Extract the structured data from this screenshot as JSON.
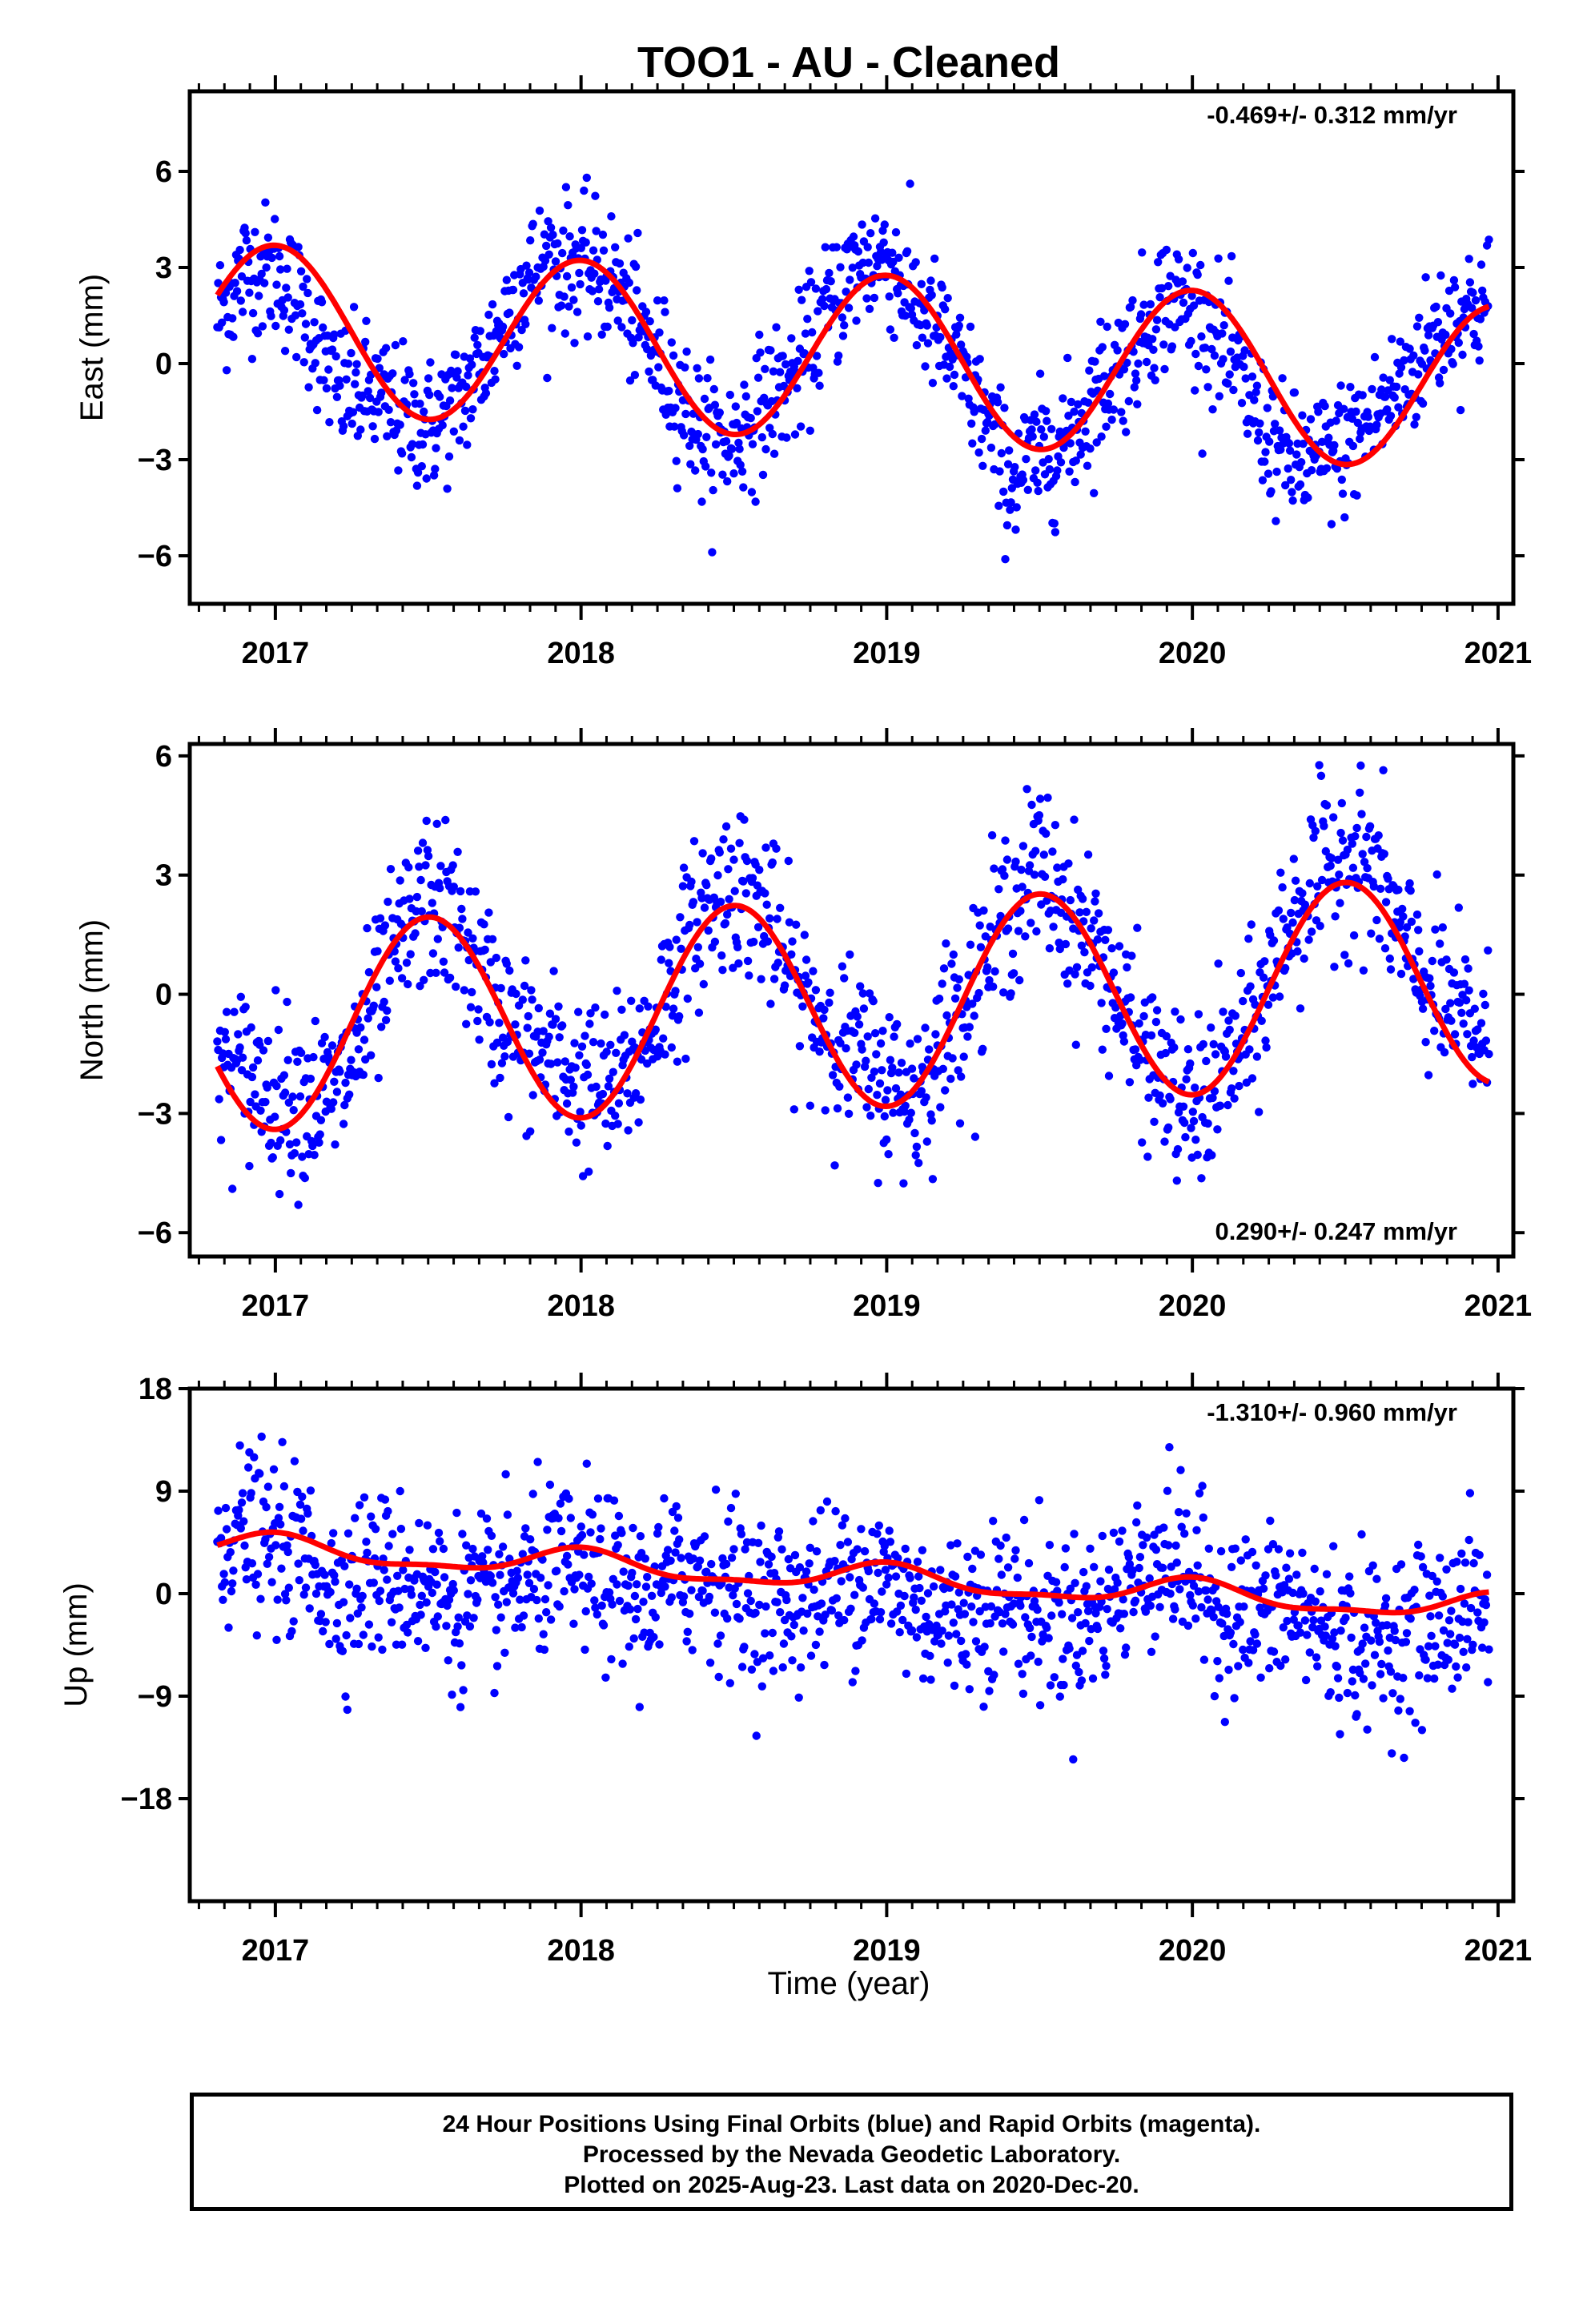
{
  "title": "TOO1  - AU - Cleaned",
  "x_axis": {
    "label": "Time (year)",
    "ticks": [
      "2017",
      "2018",
      "2019",
      "2020",
      "2021"
    ]
  },
  "footer": {
    "line1": "24 Hour Positions Using Final Orbits (blue) and Rapid Orbits (magenta).",
    "line2": "Processed by the Nevada Geodetic Laboratory.",
    "line3": "Plotted on 2025-Aug-23. Last data on 2020-Dec-20."
  },
  "colors": {
    "points": "#0000ff",
    "model": "#ff0000",
    "frame": "#000000"
  },
  "chart_data": [
    {
      "type": "scatter",
      "ylabel": "East (mm)",
      "rate": "-0.469+/- 0.312 mm/yr",
      "xlim": [
        2016.72,
        2021.05
      ],
      "ylim": [
        -7.5,
        8.5
      ],
      "yticks": [
        6,
        3,
        0,
        -3,
        -6
      ],
      "x_start": 2016.81,
      "x_end": 2020.97,
      "series": [
        {
          "values": [
            [
              2016.8,
              1.3
            ],
            [
              2016.9,
              2.9
            ],
            [
              2017.0,
              2.9
            ],
            [
              2017.1,
              1.6
            ],
            [
              2017.2,
              -0.8
            ],
            [
              2017.3,
              -0.9
            ],
            [
              2017.4,
              -1.5
            ],
            [
              2017.5,
              -2.0
            ],
            [
              2017.6,
              -1.2
            ],
            [
              2017.7,
              0.4
            ],
            [
              2017.8,
              2.4
            ],
            [
              2017.9,
              3.3
            ],
            [
              2018.0,
              3.0
            ],
            [
              2018.1,
              2.7
            ],
            [
              2018.2,
              0.9
            ],
            [
              2018.3,
              -0.6
            ],
            [
              2018.4,
              -2.3
            ],
            [
              2018.5,
              -2.4
            ],
            [
              2018.6,
              -1.2
            ],
            [
              2018.7,
              -0.4
            ],
            [
              2018.8,
              1.6
            ],
            [
              2018.9,
              3.0
            ],
            [
              2019.0,
              3.4
            ],
            [
              2019.1,
              1.8
            ],
            [
              2019.2,
              0.5
            ],
            [
              2019.3,
              -1.3
            ],
            [
              2019.4,
              -3.6
            ],
            [
              2019.5,
              -2.9
            ],
            [
              2019.6,
              -2.3
            ],
            [
              2019.7,
              -0.7
            ],
            [
              2019.8,
              0.4
            ],
            [
              2019.9,
              2.0
            ],
            [
              2020.0,
              1.8
            ],
            [
              2020.1,
              0.6
            ],
            [
              2020.2,
              -1.4
            ],
            [
              2020.3,
              -3.0
            ],
            [
              2020.4,
              -3.1
            ],
            [
              2020.5,
              -2.6
            ],
            [
              2020.6,
              -1.6
            ],
            [
              2020.7,
              -0.5
            ],
            [
              2020.8,
              1.0
            ],
            [
              2020.9,
              1.7
            ],
            [
              2020.97,
              1.9
            ]
          ]
        }
      ],
      "model": {
        "offset": 0.2,
        "rate": -0.469,
        "cos": 2.6,
        "sin": 0.0,
        "cos2": 0.0,
        "sin2": 0.0
      }
    },
    {
      "type": "scatter",
      "ylabel": "North (mm)",
      "rate": "0.290+/- 0.247 mm/yr",
      "xlim": [
        2016.72,
        2021.05
      ],
      "ylim": [
        -6.6,
        6.3
      ],
      "yticks": [
        6,
        3,
        0,
        -3,
        -6
      ],
      "x_start": 2016.81,
      "x_end": 2020.97,
      "series": [
        {
          "values": [
            [
              2016.8,
              -1.6
            ],
            [
              2016.9,
              -2.0
            ],
            [
              2017.0,
              -2.4
            ],
            [
              2017.1,
              -2.6
            ],
            [
              2017.2,
              -2.6
            ],
            [
              2017.3,
              -0.8
            ],
            [
              2017.4,
              1.1
            ],
            [
              2017.5,
              2.5
            ],
            [
              2017.6,
              1.7
            ],
            [
              2017.7,
              0.0
            ],
            [
              2017.8,
              -1.2
            ],
            [
              2017.9,
              -1.6
            ],
            [
              2018.0,
              -2.2
            ],
            [
              2018.1,
              -2.5
            ],
            [
              2018.2,
              -1.4
            ],
            [
              2018.3,
              0.4
            ],
            [
              2018.4,
              2.1
            ],
            [
              2018.5,
              2.9
            ],
            [
              2018.6,
              2.1
            ],
            [
              2018.7,
              0.2
            ],
            [
              2018.8,
              -0.8
            ],
            [
              2018.9,
              -1.5
            ],
            [
              2019.0,
              -2.2
            ],
            [
              2019.1,
              -2.6
            ],
            [
              2019.2,
              -0.8
            ],
            [
              2019.3,
              0.5
            ],
            [
              2019.4,
              2.2
            ],
            [
              2019.5,
              3.3
            ],
            [
              2019.6,
              2.0
            ],
            [
              2019.7,
              1.0
            ],
            [
              2019.8,
              -1.0
            ],
            [
              2019.9,
              -2.1
            ],
            [
              2020.0,
              -3.1
            ],
            [
              2020.1,
              -1.9
            ],
            [
              2020.2,
              -0.9
            ],
            [
              2020.3,
              1.6
            ],
            [
              2020.4,
              2.8
            ],
            [
              2020.5,
              3.6
            ],
            [
              2020.6,
              3.1
            ],
            [
              2020.7,
              1.0
            ],
            [
              2020.8,
              -0.1
            ],
            [
              2020.9,
              -0.7
            ],
            [
              2020.97,
              -1.3
            ]
          ]
        }
      ],
      "model": {
        "offset": -0.25,
        "rate": 0.29,
        "cos": -2.6,
        "sin": 0.0,
        "cos2": 0.0,
        "sin2": 0.0
      }
    },
    {
      "type": "scatter",
      "ylabel": "Up (mm)",
      "rate": "-1.310+/- 0.960 mm/yr",
      "xlim": [
        2016.72,
        2021.05
      ],
      "ylim": [
        -27,
        18
      ],
      "yticks": [
        18,
        9,
        0,
        -9,
        -18
      ],
      "x_start": 2016.81,
      "x_end": 2020.97,
      "series": [
        {
          "values": [
            [
              2016.8,
              4.5
            ],
            [
              2016.9,
              5.8
            ],
            [
              2017.0,
              4.0
            ],
            [
              2017.1,
              3.5
            ],
            [
              2017.2,
              0.0
            ],
            [
              2017.3,
              1.8
            ],
            [
              2017.4,
              1.5
            ],
            [
              2017.5,
              0.5
            ],
            [
              2017.6,
              -0.8
            ],
            [
              2017.7,
              -0.5
            ],
            [
              2017.8,
              0.8
            ],
            [
              2017.9,
              2.0
            ],
            [
              2018.0,
              2.2
            ],
            [
              2018.1,
              1.0
            ],
            [
              2018.2,
              -0.8
            ],
            [
              2018.3,
              1.5
            ],
            [
              2018.4,
              2.0
            ],
            [
              2018.5,
              0.8
            ],
            [
              2018.6,
              -1.0
            ],
            [
              2018.7,
              -0.6
            ],
            [
              2018.8,
              0.4
            ],
            [
              2018.9,
              1.8
            ],
            [
              2019.0,
              1.2
            ],
            [
              2019.1,
              -1.0
            ],
            [
              2019.2,
              -2.0
            ],
            [
              2019.3,
              -0.8
            ],
            [
              2019.4,
              -0.5
            ],
            [
              2019.5,
              -2.0
            ],
            [
              2019.6,
              -2.5
            ],
            [
              2019.7,
              -1.2
            ],
            [
              2019.8,
              1.0
            ],
            [
              2019.9,
              3.5
            ],
            [
              2020.0,
              1.5
            ],
            [
              2020.1,
              -1.5
            ],
            [
              2020.2,
              -2.0
            ],
            [
              2020.3,
              -1.0
            ],
            [
              2020.4,
              -2.5
            ],
            [
              2020.5,
              -4.0
            ],
            [
              2020.6,
              -4.5
            ],
            [
              2020.7,
              -3.5
            ],
            [
              2020.8,
              -3.0
            ],
            [
              2020.9,
              -1.0
            ],
            [
              2020.97,
              -1.0
            ]
          ]
        }
      ],
      "model": {
        "offset": 1.4,
        "rate": -1.31,
        "cos": 1.1,
        "sin": 0.0,
        "cos2": 0.4,
        "sin2": 0.0
      }
    }
  ]
}
